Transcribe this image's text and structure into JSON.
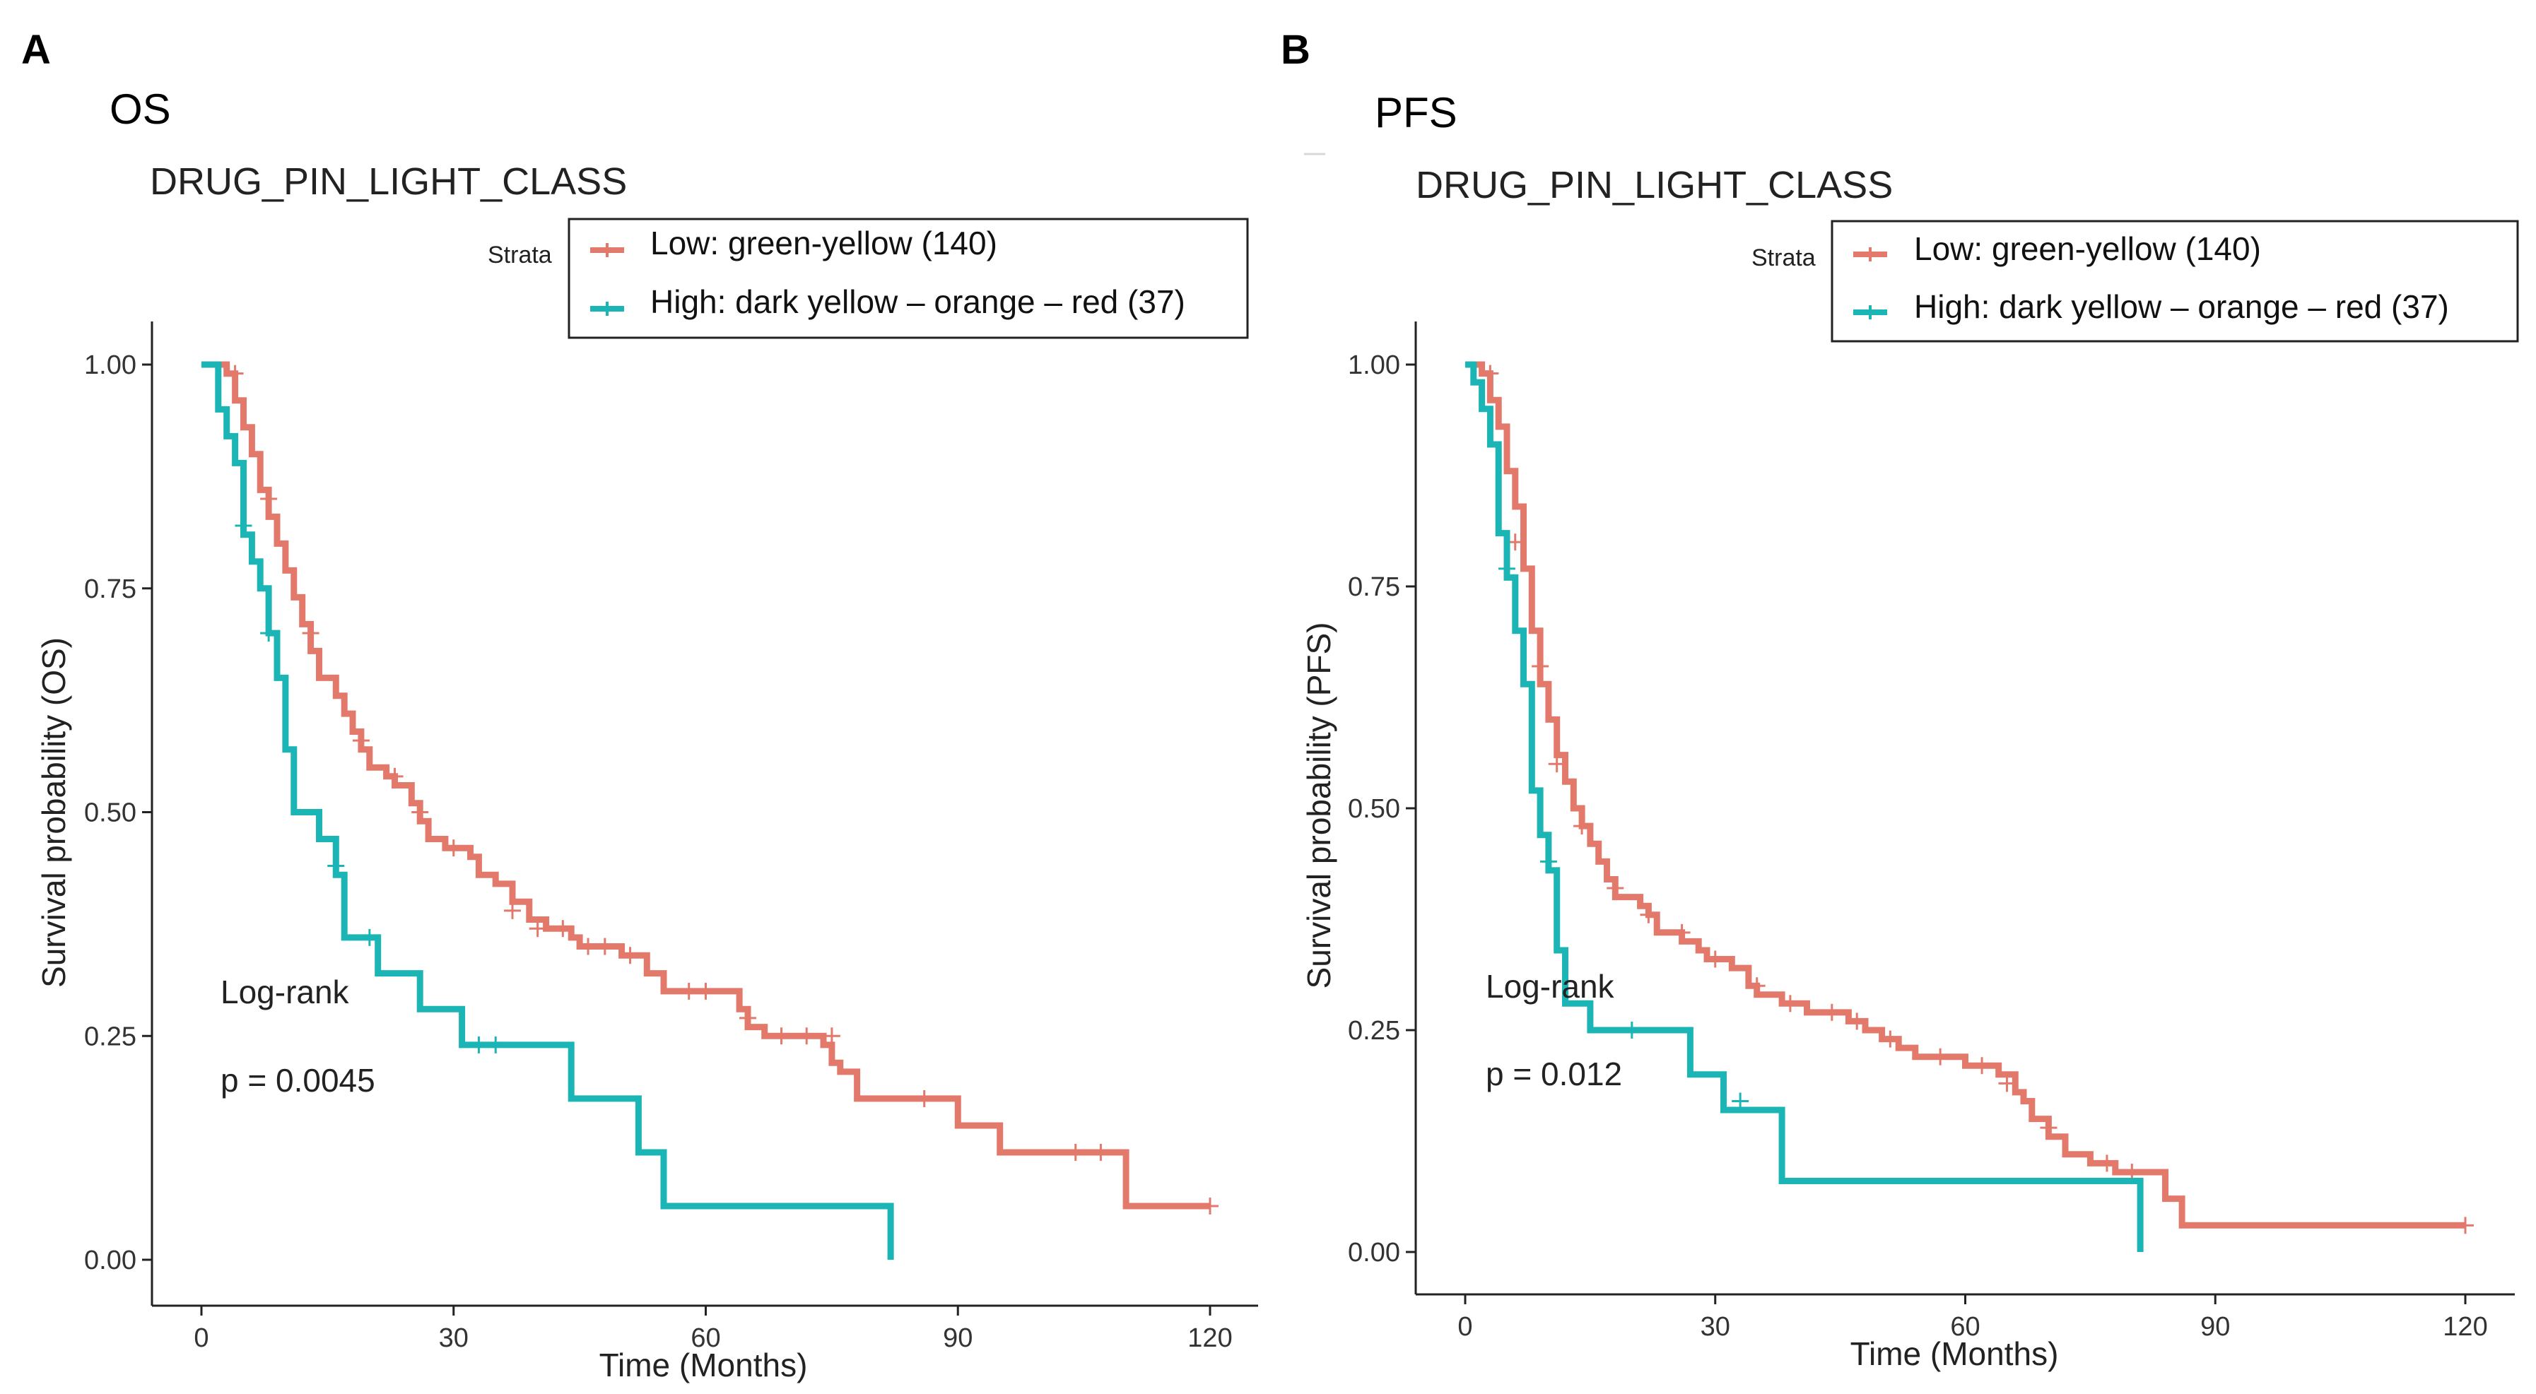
{
  "chart_data": [
    {
      "panel": "A",
      "heading": "OS",
      "type": "line",
      "title": "DRUG_PIN_LIGHT_CLASS",
      "xlabel": "Time (Months)",
      "ylabel": "Survival probability (OS)",
      "xlim": [
        0,
        120
      ],
      "ylim": [
        0,
        1
      ],
      "xticks": [
        0,
        30,
        60,
        90,
        120
      ],
      "yticks": [
        0,
        0.25,
        0.5,
        0.75,
        1
      ],
      "ytick_labels": [
        "0.00",
        "0.25",
        "0.50",
        "0.75",
        "1.00"
      ],
      "grid": false,
      "legend": {
        "title": "Strata",
        "position": "top-right",
        "entries": [
          "Low: green-yellow (140)",
          "High: dark yellow – orange – red (37)"
        ]
      },
      "annotations": [
        "Log-rank",
        "p = 0.0045"
      ],
      "series": [
        {
          "name": "Low: green-yellow (140)",
          "color": "#e3796a",
          "steps": [
            [
              0,
              1.0
            ],
            [
              3,
              0.99
            ],
            [
              4,
              0.96
            ],
            [
              5,
              0.93
            ],
            [
              6,
              0.9
            ],
            [
              7,
              0.86
            ],
            [
              8,
              0.83
            ],
            [
              9,
              0.8
            ],
            [
              10,
              0.77
            ],
            [
              11,
              0.74
            ],
            [
              12,
              0.71
            ],
            [
              13,
              0.68
            ],
            [
              14,
              0.65
            ],
            [
              16,
              0.63
            ],
            [
              17,
              0.61
            ],
            [
              18,
              0.59
            ],
            [
              19,
              0.57
            ],
            [
              20,
              0.55
            ],
            [
              22,
              0.54
            ],
            [
              23,
              0.53
            ],
            [
              25,
              0.51
            ],
            [
              26,
              0.49
            ],
            [
              27,
              0.47
            ],
            [
              29,
              0.46
            ],
            [
              32,
              0.45
            ],
            [
              33,
              0.43
            ],
            [
              35,
              0.42
            ],
            [
              37,
              0.4
            ],
            [
              39,
              0.38
            ],
            [
              41,
              0.37
            ],
            [
              44,
              0.36
            ],
            [
              45,
              0.35
            ],
            [
              50,
              0.34
            ],
            [
              53,
              0.32
            ],
            [
              55,
              0.3
            ],
            [
              59,
              0.3
            ],
            [
              64,
              0.28
            ],
            [
              65,
              0.26
            ],
            [
              67,
              0.25
            ],
            [
              74,
              0.24
            ],
            [
              75,
              0.22
            ],
            [
              76,
              0.21
            ],
            [
              78,
              0.18
            ],
            [
              90,
              0.15
            ],
            [
              95,
              0.12
            ],
            [
              110,
              0.06
            ],
            [
              120,
              0.06
            ]
          ],
          "censor": [
            [
              4,
              0.99
            ],
            [
              8,
              0.85
            ],
            [
              13,
              0.7
            ],
            [
              19,
              0.58
            ],
            [
              23,
              0.54
            ],
            [
              26,
              0.5
            ],
            [
              30,
              0.46
            ],
            [
              37,
              0.39
            ],
            [
              40,
              0.37
            ],
            [
              43,
              0.37
            ],
            [
              46,
              0.35
            ],
            [
              48,
              0.35
            ],
            [
              51,
              0.34
            ],
            [
              58,
              0.3
            ],
            [
              60,
              0.3
            ],
            [
              65,
              0.27
            ],
            [
              69,
              0.25
            ],
            [
              72,
              0.25
            ],
            [
              75,
              0.25
            ],
            [
              86,
              0.18
            ],
            [
              104,
              0.12
            ],
            [
              107,
              0.12
            ],
            [
              120,
              0.06
            ]
          ]
        },
        {
          "name": "High: dark yellow – orange – red (37)",
          "color": "#1bb5b5",
          "steps": [
            [
              0,
              1.0
            ],
            [
              2,
              0.95
            ],
            [
              3,
              0.92
            ],
            [
              4,
              0.89
            ],
            [
              5,
              0.81
            ],
            [
              6,
              0.78
            ],
            [
              7,
              0.75
            ],
            [
              8,
              0.7
            ],
            [
              9,
              0.65
            ],
            [
              10,
              0.57
            ],
            [
              11,
              0.5
            ],
            [
              14,
              0.47
            ],
            [
              16,
              0.43
            ],
            [
              17,
              0.36
            ],
            [
              21,
              0.32
            ],
            [
              26,
              0.28
            ],
            [
              31,
              0.24
            ],
            [
              44,
              0.18
            ],
            [
              52,
              0.12
            ],
            [
              55,
              0.06
            ],
            [
              82,
              0.06
            ],
            [
              82,
              0.0
            ]
          ],
          "censor": [
            [
              5,
              0.82
            ],
            [
              8,
              0.7
            ],
            [
              16,
              0.44
            ],
            [
              20,
              0.36
            ],
            [
              33,
              0.24
            ],
            [
              35,
              0.24
            ]
          ]
        }
      ]
    },
    {
      "panel": "B",
      "heading": "PFS",
      "type": "line",
      "title": "DRUG_PIN_LIGHT_CLASS",
      "xlabel": "Time (Months)",
      "ylabel": "Survival probability (PFS)",
      "xlim": [
        0,
        120
      ],
      "ylim": [
        0,
        1
      ],
      "xticks": [
        0,
        30,
        60,
        90,
        120
      ],
      "yticks": [
        0,
        0.25,
        0.5,
        0.75,
        1
      ],
      "ytick_labels": [
        "0.00",
        "0.25",
        "0.50",
        "0.75",
        "1.00"
      ],
      "grid": false,
      "legend": {
        "title": "Strata",
        "position": "top-right",
        "entries": [
          "Low: green-yellow (140)",
          "High: dark yellow – orange – red (37)"
        ]
      },
      "annotations": [
        "Log-rank",
        "p = 0.012"
      ],
      "series": [
        {
          "name": "Low: green-yellow (140)",
          "color": "#e3796a",
          "steps": [
            [
              0,
              1.0
            ],
            [
              2,
              0.99
            ],
            [
              3,
              0.96
            ],
            [
              4,
              0.93
            ],
            [
              5,
              0.88
            ],
            [
              6,
              0.84
            ],
            [
              7,
              0.77
            ],
            [
              8,
              0.7
            ],
            [
              9,
              0.64
            ],
            [
              10,
              0.6
            ],
            [
              11,
              0.56
            ],
            [
              12,
              0.53
            ],
            [
              13,
              0.5
            ],
            [
              14,
              0.48
            ],
            [
              15,
              0.46
            ],
            [
              16,
              0.44
            ],
            [
              17,
              0.42
            ],
            [
              18,
              0.4
            ],
            [
              21,
              0.39
            ],
            [
              22,
              0.38
            ],
            [
              23,
              0.36
            ],
            [
              26,
              0.35
            ],
            [
              28,
              0.34
            ],
            [
              29,
              0.33
            ],
            [
              32,
              0.32
            ],
            [
              34,
              0.3
            ],
            [
              35,
              0.29
            ],
            [
              38,
              0.28
            ],
            [
              41,
              0.27
            ],
            [
              46,
              0.26
            ],
            [
              48,
              0.25
            ],
            [
              50,
              0.24
            ],
            [
              52,
              0.23
            ],
            [
              54,
              0.22
            ],
            [
              60,
              0.21
            ],
            [
              64,
              0.2
            ],
            [
              66,
              0.18
            ],
            [
              67,
              0.17
            ],
            [
              68,
              0.15
            ],
            [
              70,
              0.13
            ],
            [
              72,
              0.11
            ],
            [
              75,
              0.1
            ],
            [
              78,
              0.09
            ],
            [
              84,
              0.06
            ],
            [
              86,
              0.03
            ],
            [
              120,
              0.03
            ]
          ],
          "censor": [
            [
              3,
              0.99
            ],
            [
              6,
              0.8
            ],
            [
              9,
              0.66
            ],
            [
              11,
              0.55
            ],
            [
              14,
              0.48
            ],
            [
              18,
              0.41
            ],
            [
              22,
              0.38
            ],
            [
              26,
              0.36
            ],
            [
              30,
              0.33
            ],
            [
              35,
              0.3
            ],
            [
              39,
              0.28
            ],
            [
              44,
              0.27
            ],
            [
              47,
              0.26
            ],
            [
              51,
              0.24
            ],
            [
              57,
              0.22
            ],
            [
              62,
              0.21
            ],
            [
              65,
              0.19
            ],
            [
              70,
              0.14
            ],
            [
              77,
              0.1
            ],
            [
              80,
              0.09
            ],
            [
              120,
              0.03
            ]
          ]
        },
        {
          "name": "High: dark yellow – orange – red (37)",
          "color": "#1bb5b5",
          "steps": [
            [
              0,
              1.0
            ],
            [
              1,
              0.98
            ],
            [
              2,
              0.95
            ],
            [
              3,
              0.91
            ],
            [
              4,
              0.81
            ],
            [
              5,
              0.76
            ],
            [
              6,
              0.7
            ],
            [
              7,
              0.64
            ],
            [
              8,
              0.52
            ],
            [
              9,
              0.47
            ],
            [
              10,
              0.43
            ],
            [
              11,
              0.34
            ],
            [
              12,
              0.28
            ],
            [
              15,
              0.25
            ],
            [
              27,
              0.2
            ],
            [
              31,
              0.16
            ],
            [
              38,
              0.08
            ],
            [
              81,
              0.08
            ],
            [
              81,
              0.0
            ]
          ],
          "censor": [
            [
              5,
              0.77
            ],
            [
              10,
              0.44
            ],
            [
              20,
              0.25
            ],
            [
              33,
              0.17
            ]
          ]
        }
      ]
    }
  ]
}
